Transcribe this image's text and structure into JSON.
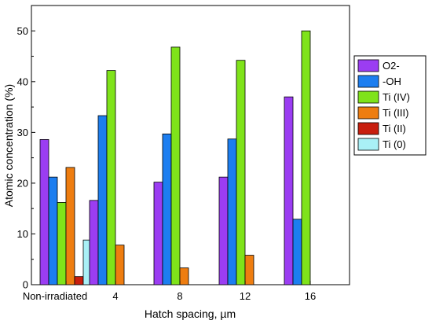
{
  "chart_data": {
    "type": "bar",
    "title": "",
    "xlabel": "Hatch spacing, µm",
    "ylabel": "Atomic concentration (%)",
    "ylim": [
      0,
      55
    ],
    "yticks": [
      0,
      10,
      20,
      30,
      40,
      50
    ],
    "grid": false,
    "legend_position": "right",
    "categories": [
      "Non-irradiated",
      "4",
      "8",
      "12",
      "16"
    ],
    "series": [
      {
        "name": "O2-",
        "color": "#9b3df2",
        "values": [
          28.6,
          16.6,
          20.2,
          21.2,
          37.0
        ]
      },
      {
        "name": "-OH",
        "color": "#1c7ef0",
        "values": [
          21.2,
          33.3,
          29.7,
          28.7,
          12.9
        ]
      },
      {
        "name": "Ti (IV)",
        "color": "#7fe31a",
        "values": [
          16.2,
          42.2,
          46.8,
          44.2,
          50.0
        ]
      },
      {
        "name": "Ti (III)",
        "color": "#ee7d10",
        "values": [
          23.1,
          7.8,
          3.3,
          5.8,
          null
        ]
      },
      {
        "name": "Ti (II)",
        "color": "#c81e0e",
        "values": [
          1.6,
          null,
          null,
          null,
          null
        ]
      },
      {
        "name": "Ti (0)",
        "color": "#a9f0f6",
        "values": [
          8.8,
          null,
          null,
          null,
          null
        ]
      }
    ]
  }
}
